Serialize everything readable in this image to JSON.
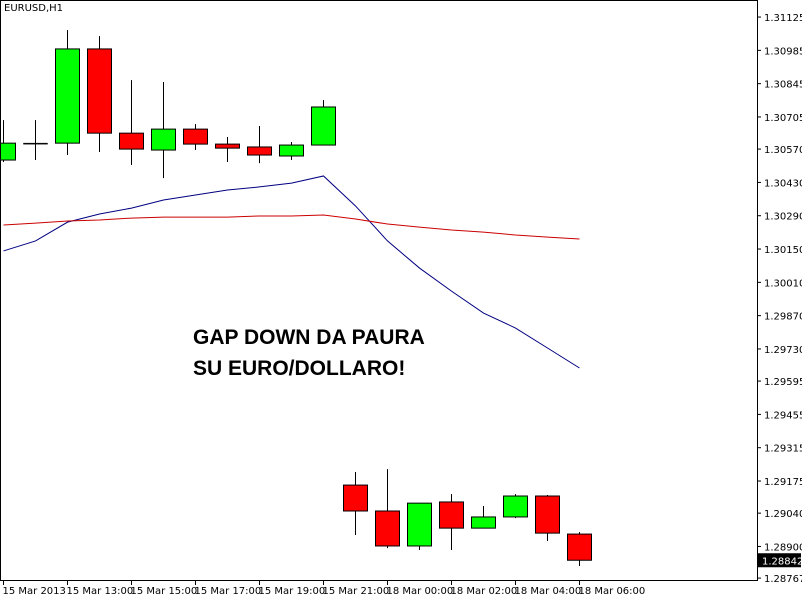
{
  "chart_data": {
    "type": "candlestick",
    "title": "EURUSD,H1",
    "annotation": [
      "GAP DOWN DA PAURA",
      "SU EURO/DOLLARO!"
    ],
    "categories": [
      "15 Mar 2013",
      null,
      "15 Mar 13:00",
      null,
      "15 Mar 15:00",
      null,
      "15 Mar 17:00",
      null,
      "15 Mar 19:00",
      null,
      "15 Mar 21:00",
      null,
      "18 Mar 00:00",
      null,
      "18 Mar 02:00",
      null,
      "18 Mar 04:00",
      null,
      "18 Mar 06:00"
    ],
    "open": [
      1.30524,
      1.30595,
      1.30595,
      1.30991,
      1.30637,
      1.30566,
      1.30654,
      1.30591,
      1.30579,
      1.30541,
      1.30587,
      1.29158,
      1.29049,
      1.28902,
      1.29087,
      1.28977,
      1.29024,
      1.29112,
      1.28952
    ],
    "high": [
      1.30692,
      1.30692,
      1.3107,
      1.31045,
      1.3086,
      1.30852,
      1.30675,
      1.30621,
      1.30667,
      1.306,
      1.30776,
      1.29213,
      1.29225,
      1.29082,
      1.2912,
      1.2907,
      1.2912,
      1.29116,
      1.2896
    ],
    "low": [
      1.30516,
      1.30524,
      1.30545,
      1.30558,
      1.30503,
      1.30448,
      1.30566,
      1.30516,
      1.30511,
      1.30524,
      1.30587,
      1.28948,
      1.28893,
      1.28885,
      1.28885,
      1.28977,
      1.29019,
      1.28923,
      1.28818
    ],
    "close": [
      1.30595,
      1.30595,
      1.30991,
      1.30637,
      1.3057,
      1.30654,
      1.30591,
      1.30574,
      1.30545,
      1.30587,
      1.30747,
      1.29049,
      1.28902,
      1.29082,
      1.28977,
      1.29024,
      1.29112,
      1.28956,
      1.28842
    ],
    "up_color": "#00ff00",
    "down_color": "#ff0000",
    "lines": [
      {
        "color": "#000080",
        "values": [
          1.30142,
          1.30184,
          1.30263,
          1.30297,
          1.30322,
          1.30356,
          1.30377,
          1.30398,
          1.30411,
          1.30427,
          1.30457,
          1.30331,
          1.30184,
          1.3007,
          1.29973,
          1.29881,
          1.29818,
          1.29734,
          1.2965
        ]
      },
      {
        "color": "#cc0000",
        "values": [
          1.30251,
          1.30259,
          1.30268,
          1.30272,
          1.3028,
          1.30284,
          1.30284,
          1.30284,
          1.30289,
          1.30289,
          1.30293,
          1.30276,
          1.30255,
          1.30242,
          1.3023,
          1.30221,
          1.30209,
          1.302,
          1.30192
        ]
      }
    ],
    "last_price": 1.28842,
    "ylim": [
      1.28759,
      1.31184
    ],
    "yticks": [
      1.31125,
      1.30985,
      1.30845,
      1.30705,
      {
        "value": 1.3057,
        "label": "1.30570"
      },
      {
        "value": 1.3043,
        "label": "1.30430"
      },
      {
        "value": 1.3029,
        "label": "1.30290"
      },
      {
        "value": 1.3015,
        "label": "1.30150"
      },
      {
        "value": 1.3001,
        "label": "1.30010"
      },
      {
        "value": 1.2987,
        "label": "1.29870"
      },
      {
        "value": 1.2973,
        "label": "1.29730"
      },
      1.29595,
      1.29455,
      1.29315,
      1.29175,
      {
        "value": 1.2904,
        "label": "1.29040"
      },
      {
        "value": 1.289,
        "label": "1.28900"
      },
      1.28767
    ],
    "grid": false
  }
}
